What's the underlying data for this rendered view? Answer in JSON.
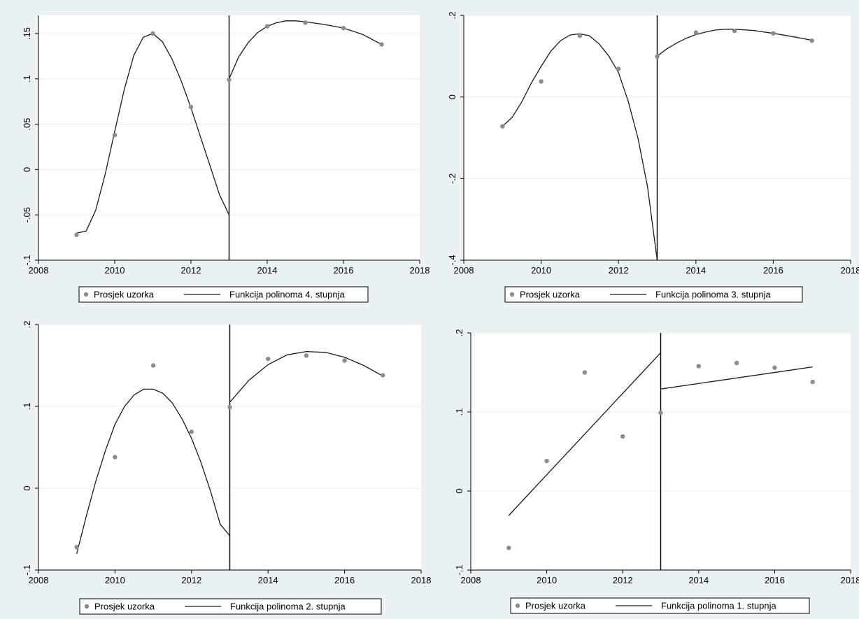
{
  "chart_data": [
    {
      "type": "scatter",
      "x": [
        2009,
        2010,
        2011,
        2012,
        2013,
        2014,
        2015,
        2016,
        2017
      ],
      "series": [
        {
          "name": "Prosjek uzorka",
          "kind": "scatter",
          "values": [
            -0.072,
            0.038,
            0.15,
            0.069,
            0.099,
            0.158,
            0.162,
            0.156,
            0.138
          ]
        },
        {
          "name": "Funkcija polinoma 4. stupnja",
          "kind": "line",
          "segments": [
            {
              "x": [
                2009.0,
                2009.25,
                2009.5,
                2009.75,
                2010.0,
                2010.25,
                2010.5,
                2010.75,
                2011.0,
                2011.25,
                2011.5,
                2011.75,
                2012.0,
                2012.25,
                2012.5,
                2012.75,
                2013.0
              ],
              "y": [
                -0.07,
                -0.068,
                -0.045,
                -0.005,
                0.042,
                0.088,
                0.126,
                0.146,
                0.15,
                0.141,
                0.122,
                0.097,
                0.068,
                0.036,
                0.004,
                -0.028,
                -0.05
              ]
            },
            {
              "x": [
                2013.0,
                2013.25,
                2013.5,
                2013.75,
                2014.0,
                2014.25,
                2014.5,
                2014.75,
                2015.0,
                2015.5,
                2016.0,
                2016.5,
                2017.0
              ],
              "y": [
                0.1,
                0.124,
                0.14,
                0.151,
                0.158,
                0.162,
                0.164,
                0.164,
                0.163,
                0.16,
                0.156,
                0.149,
                0.138
              ]
            }
          ]
        }
      ],
      "xlim": [
        2008,
        2018
      ],
      "ylim": [
        -0.1,
        0.17
      ],
      "xticks": [
        2008,
        2010,
        2012,
        2014,
        2016,
        2018
      ],
      "yticks": [
        -0.1,
        -0.05,
        0,
        0.05,
        0.1,
        0.15
      ],
      "ytick_labels": [
        "-.1",
        "-.05",
        "0",
        ".05",
        ".1",
        ".15"
      ],
      "vline": 2013,
      "legend": [
        "Prosjek uzorka",
        "Funkcija polinoma 4. stupnja"
      ],
      "legend_position": "bottom",
      "grid": true
    },
    {
      "type": "scatter",
      "x": [
        2009,
        2010,
        2011,
        2012,
        2013,
        2014,
        2015,
        2016,
        2017
      ],
      "series": [
        {
          "name": "Prosjek uzorka",
          "kind": "scatter",
          "values": [
            -0.072,
            0.038,
            0.15,
            0.069,
            0.099,
            0.158,
            0.162,
            0.156,
            0.138
          ]
        },
        {
          "name": "Funkcija polinoma 3. stupnja",
          "kind": "line",
          "segments": [
            {
              "x": [
                2009.0,
                2009.25,
                2009.5,
                2009.75,
                2010.0,
                2010.25,
                2010.5,
                2010.75,
                2011.0,
                2011.25,
                2011.5,
                2011.75,
                2012.0,
                2012.25,
                2012.5,
                2012.75,
                2013.0
              ],
              "y": [
                -0.072,
                -0.05,
                -0.012,
                0.035,
                0.075,
                0.112,
                0.138,
                0.152,
                0.155,
                0.15,
                0.13,
                0.1,
                0.06,
                -0.01,
                -0.1,
                -0.22,
                -0.4
              ]
            },
            {
              "x": [
                2013.0,
                2013.25,
                2013.5,
                2013.75,
                2014.0,
                2014.25,
                2014.5,
                2014.75,
                2015.0,
                2015.5,
                2016.0,
                2016.5,
                2017.0
              ],
              "y": [
                0.1,
                0.118,
                0.132,
                0.144,
                0.153,
                0.159,
                0.164,
                0.166,
                0.166,
                0.163,
                0.156,
                0.148,
                0.139
              ]
            }
          ]
        }
      ],
      "xlim": [
        2008,
        2018
      ],
      "ylim": [
        -0.4,
        0.2
      ],
      "xticks": [
        2008,
        2010,
        2012,
        2014,
        2016,
        2018
      ],
      "yticks": [
        -0.4,
        -0.2,
        0,
        0.2
      ],
      "ytick_labels": [
        "-.4",
        "-.2",
        "0",
        ".2"
      ],
      "vline": 2013,
      "legend": [
        "Prosjek uzorka",
        "Funkcija polinoma 3. stupnja"
      ],
      "legend_position": "bottom",
      "grid": true
    },
    {
      "type": "scatter",
      "x": [
        2009,
        2010,
        2011,
        2012,
        2013,
        2014,
        2015,
        2016,
        2017
      ],
      "series": [
        {
          "name": "Prosjek uzorka",
          "kind": "scatter",
          "values": [
            -0.072,
            0.038,
            0.15,
            0.069,
            0.099,
            0.158,
            0.162,
            0.156,
            0.138
          ]
        },
        {
          "name": "Funkcija polinoma 2. stupnja",
          "kind": "line",
          "segments": [
            {
              "x": [
                2009.0,
                2009.25,
                2009.5,
                2009.75,
                2010.0,
                2010.25,
                2010.5,
                2010.75,
                2011.0,
                2011.25,
                2011.5,
                2011.75,
                2012.0,
                2012.25,
                2012.5,
                2012.75,
                2013.0
              ],
              "y": [
                -0.08,
                -0.034,
                0.009,
                0.046,
                0.078,
                0.1,
                0.114,
                0.121,
                0.121,
                0.116,
                0.104,
                0.085,
                0.061,
                0.031,
                -0.004,
                -0.044,
                -0.058
              ]
            },
            {
              "x": [
                2013.0,
                2013.5,
                2014.0,
                2014.5,
                2015.0,
                2015.5,
                2016.0,
                2016.5,
                2017.0
              ],
              "y": [
                0.105,
                0.132,
                0.151,
                0.163,
                0.167,
                0.166,
                0.16,
                0.15,
                0.137
              ]
            }
          ]
        }
      ],
      "xlim": [
        2008,
        2018
      ],
      "ylim": [
        -0.1,
        0.2
      ],
      "xticks": [
        2008,
        2010,
        2012,
        2014,
        2016,
        2018
      ],
      "yticks": [
        -0.1,
        0,
        0.1,
        0.2
      ],
      "ytick_labels": [
        "-.1",
        "0",
        ".1",
        ".2"
      ],
      "vline": 2013,
      "legend": [
        "Prosjek uzorka",
        "Funkcija polinoma 2. stupnja"
      ],
      "legend_position": "bottom",
      "grid": true
    },
    {
      "type": "scatter",
      "x": [
        2009,
        2010,
        2011,
        2012,
        2013,
        2014,
        2015,
        2016,
        2017
      ],
      "series": [
        {
          "name": "Prosjek uzorka",
          "kind": "scatter",
          "values": [
            -0.072,
            0.038,
            0.15,
            0.069,
            0.099,
            0.158,
            0.162,
            0.156,
            0.138
          ]
        },
        {
          "name": "Funkcija polinoma 1. stupnja",
          "kind": "line",
          "segments": [
            {
              "x": [
                2009,
                2013
              ],
              "y": [
                -0.031,
                0.175
              ]
            },
            {
              "x": [
                2013,
                2017
              ],
              "y": [
                0.129,
                0.157
              ]
            }
          ]
        }
      ],
      "xlim": [
        2008,
        2018
      ],
      "ylim": [
        -0.1,
        0.2
      ],
      "xticks": [
        2008,
        2010,
        2012,
        2014,
        2016,
        2018
      ],
      "yticks": [
        -0.1,
        0,
        0.1,
        0.2
      ],
      "ytick_labels": [
        "-.1",
        "0",
        ".1",
        ".2"
      ],
      "vline": 2013,
      "legend": [
        "Prosjek uzorka",
        "Funkcija polinoma 1. stupnja"
      ],
      "legend_position": "bottom",
      "grid": true
    }
  ]
}
